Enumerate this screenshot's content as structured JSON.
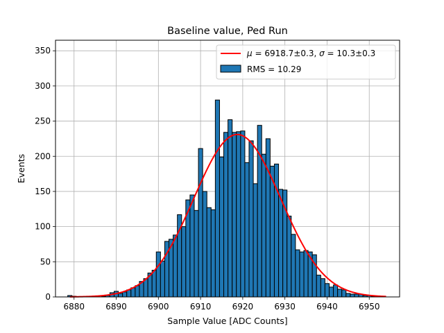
{
  "chart_data": {
    "type": "bar",
    "title": "Baseline value, Ped Run",
    "xlabel": "Sample Value [ADC Counts]",
    "ylabel": "Events",
    "xlim": [
      6875.6,
      6957.2
    ],
    "ylim": [
      0,
      365
    ],
    "grid": true,
    "x_ticks": [
      6880,
      6890,
      6900,
      6910,
      6920,
      6930,
      6940,
      6950
    ],
    "y_ticks": [
      0,
      50,
      100,
      150,
      200,
      250,
      300,
      350
    ],
    "bin_width": 1,
    "bins": [
      6879,
      6880,
      6881,
      6882,
      6883,
      6884,
      6885,
      6886,
      6887,
      6888,
      6889,
      6890,
      6891,
      6892,
      6893,
      6894,
      6895,
      6896,
      6897,
      6898,
      6899,
      6900,
      6901,
      6902,
      6903,
      6904,
      6905,
      6906,
      6907,
      6908,
      6909,
      6910,
      6911,
      6912,
      6913,
      6914,
      6915,
      6916,
      6917,
      6918,
      6919,
      6920,
      6921,
      6922,
      6923,
      6924,
      6925,
      6926,
      6927,
      6928,
      6929,
      6930,
      6931,
      6932,
      6933,
      6934,
      6935,
      6936,
      6937,
      6938,
      6939,
      6940,
      6941,
      6942,
      6943,
      6944,
      6945,
      6946,
      6947,
      6948,
      6949,
      6950,
      6951,
      6952,
      6953
    ],
    "counts": [
      2,
      1,
      0,
      0,
      0,
      0,
      0,
      0,
      1,
      2,
      6,
      8,
      5,
      7,
      10,
      13,
      16,
      22,
      26,
      34,
      38,
      64,
      51,
      79,
      82,
      88,
      117,
      100,
      138,
      145,
      123,
      211,
      150,
      127,
      124,
      280,
      199,
      234,
      252,
      234,
      235,
      236,
      191,
      222,
      161,
      244,
      203,
      225,
      186,
      189,
      153,
      152,
      115,
      89,
      67,
      64,
      66,
      64,
      60,
      31,
      26,
      19,
      14,
      17,
      11,
      10,
      5,
      4,
      4,
      4,
      2,
      2,
      1,
      1,
      1
    ],
    "series": [
      {
        "name": "RMS = 10.29",
        "kind": "histogram",
        "color": "#1f77b4",
        "edgecolor": "#000000"
      },
      {
        "name": "μ = 6918.7±0.3, σ = 10.3±0.3",
        "kind": "gaussian-fit",
        "color": "#ff0000",
        "mu": 6918.7,
        "sigma": 10.3,
        "amplitude": 231,
        "x_range": [
          6879,
          6954
        ]
      }
    ],
    "legend": {
      "placement": "top-right",
      "entries": [
        {
          "label_prefix": "",
          "label_mu": "μ",
          "label_mid": " = 6918.7±0.3, ",
          "label_sigma": "σ",
          "label_end": " = 10.3±0.3",
          "swatch": "line",
          "color": "#ff0000"
        },
        {
          "label": "RMS = 10.29",
          "swatch": "patch",
          "color": "#1f77b4"
        }
      ]
    }
  }
}
